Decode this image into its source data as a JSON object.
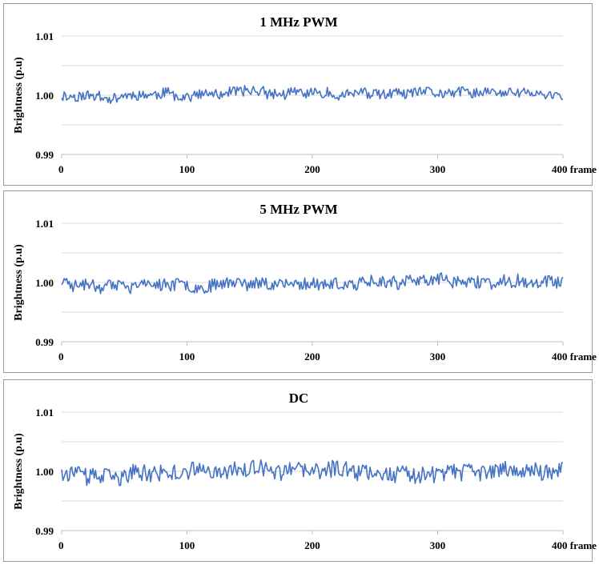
{
  "chart_data": [
    {
      "type": "line",
      "title": "1 MHz PWM",
      "ylabel": "Brightness (p.u)",
      "xlabel": "frame",
      "x_tick_labels": [
        "0",
        "100",
        "200",
        "300",
        "400 frame"
      ],
      "y_tick_labels": [
        "1.01",
        "1.00",
        "0.99"
      ],
      "xlim": [
        0,
        400
      ],
      "ylim": [
        0.99,
        1.01
      ],
      "grid": true,
      "line_color": "#4472c4",
      "amplitude": 0.0011,
      "seed": 11
    },
    {
      "type": "line",
      "title": "5 MHz PWM",
      "ylabel": "Brightness (p.u)",
      "xlabel": "frame",
      "x_tick_labels": [
        "0",
        "100",
        "200",
        "300",
        "400 frame"
      ],
      "y_tick_labels": [
        "1.01",
        "1.00",
        "0.99"
      ],
      "xlim": [
        0,
        400
      ],
      "ylim": [
        0.99,
        1.01
      ],
      "grid": true,
      "line_color": "#4472c4",
      "amplitude": 0.0013,
      "seed": 23
    },
    {
      "type": "line",
      "title": "DC",
      "ylabel": "Brightness (p.u)",
      "xlabel": "frame",
      "x_tick_labels": [
        "0",
        "100",
        "200",
        "300",
        "400 frame"
      ],
      "y_tick_labels": [
        "1.01",
        "1.00",
        "0.99"
      ],
      "xlim": [
        0,
        400
      ],
      "ylim": [
        0.99,
        1.01
      ],
      "grid": true,
      "line_color": "#4472c4",
      "amplitude": 0.0018,
      "seed": 37
    }
  ]
}
